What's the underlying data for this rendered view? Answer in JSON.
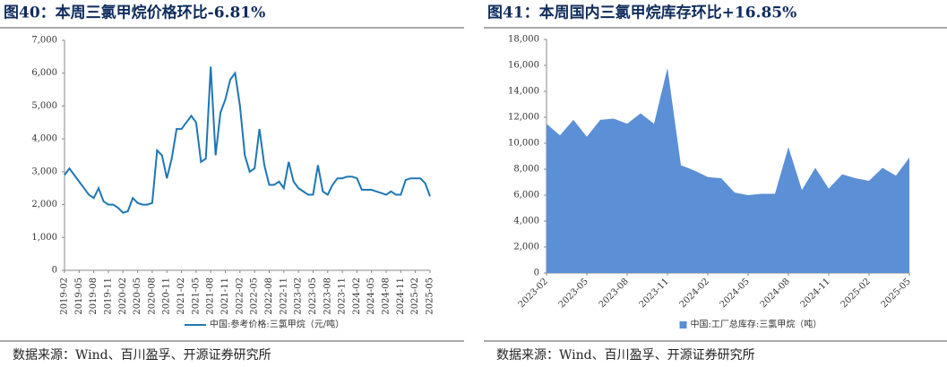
{
  "chart_data": [
    {
      "type": "line",
      "title": "图40：本周三氯甲烷价格环比-6.81%",
      "source": "数据来源：Wind、百川盈孚、开源证券研究所",
      "categories": [
        "2019-02",
        null,
        null,
        "2019-05",
        null,
        null,
        "2019-08",
        null,
        null,
        "2019-11",
        null,
        null,
        "2020-02",
        null,
        null,
        "2020-05",
        null,
        null,
        "2020-08",
        null,
        null,
        "2020-11",
        null,
        null,
        "2021-02",
        null,
        null,
        "2021-05",
        null,
        null,
        "2021-08",
        null,
        null,
        "2021-11",
        null,
        null,
        "2022-02",
        null,
        null,
        "2022-05",
        null,
        null,
        "2022-08",
        null,
        null,
        "2022-11",
        null,
        null,
        "2023-02",
        null,
        null,
        "2023-05",
        null,
        null,
        "2023-08",
        null,
        null,
        "2023-11",
        null,
        null,
        "2024-02",
        null,
        null,
        "2024-05",
        null,
        null,
        "2024-08",
        null,
        null,
        "2024-11",
        null,
        null,
        "2025-02",
        null,
        null,
        "2025-05"
      ],
      "series": [
        {
          "name": "中国:参考价格:三氯甲烷（元/吨）",
          "color": "#1f77b4",
          "values": [
            2900,
            3100,
            2900,
            2700,
            2500,
            2300,
            2200,
            2500,
            2100,
            2000,
            2000,
            1900,
            1750,
            1800,
            2200,
            2050,
            2000,
            2000,
            2050,
            3650,
            3500,
            2800,
            3400,
            4300,
            4300,
            4500,
            4700,
            4500,
            3300,
            3400,
            6200,
            3500,
            4800,
            5200,
            5800,
            6000,
            5000,
            3500,
            3000,
            3100,
            4300,
            3200,
            2600,
            2600,
            2700,
            2500,
            3300,
            2700,
            2500,
            2400,
            2300,
            2300,
            3200,
            2400,
            2300,
            2600,
            2800,
            2800,
            2850,
            2850,
            2800,
            2450,
            2450,
            2450,
            2400,
            2350,
            2300,
            2400,
            2300,
            2300,
            2750,
            2800,
            2800,
            2800,
            2650,
            2250
          ]
        }
      ],
      "ylim": [
        0,
        7000
      ],
      "yticks": [
        0,
        {
          "value": 1000,
          "label": "1,000"
        },
        {
          "value": 2000,
          "label": "2,000"
        },
        {
          "value": 3000,
          "label": "3,000"
        },
        {
          "value": 4000,
          "label": "4,000"
        },
        {
          "value": 5000,
          "label": "5,000"
        },
        {
          "value": 6000,
          "label": "6,000"
        },
        {
          "value": 7000,
          "label": "7,000"
        }
      ]
    },
    {
      "type": "area",
      "title": "图41：本周国内三氯甲烷库存环比+16.85%",
      "source": "数据来源：Wind、百川盈孚、开源证券研究所",
      "categories": [
        "2023-02",
        null,
        null,
        "2023-05",
        null,
        null,
        "2023-08",
        null,
        null,
        "2023-11",
        null,
        null,
        "2024-02",
        null,
        null,
        "2024-05",
        null,
        null,
        "2024-08",
        null,
        null,
        "2024-11",
        null,
        null,
        "2025-02",
        null,
        null,
        "2025-05"
      ],
      "series": [
        {
          "name": "中国:工厂总库存:三氯甲烷（吨）",
          "color": "#5b8fd6",
          "values": [
            11500,
            10600,
            11800,
            10500,
            11800,
            11900,
            11500,
            12300,
            11500,
            15800,
            8300,
            7900,
            7400,
            7300,
            6200,
            6000,
            6100,
            6100,
            9700,
            6400,
            8100,
            6500,
            7600,
            7300,
            7100,
            8100,
            7500,
            8900
          ]
        }
      ],
      "ylim": [
        0,
        18000
      ],
      "yticks": [
        0,
        {
          "value": 2000,
          "label": "2,000"
        },
        {
          "value": 4000,
          "label": "4,000"
        },
        {
          "value": 6000,
          "label": "6,000"
        },
        {
          "value": 8000,
          "label": "8,000"
        },
        {
          "value": 10000,
          "label": "10,000"
        },
        {
          "value": 12000,
          "label": "12,000"
        },
        {
          "value": 14000,
          "label": "14,000"
        },
        {
          "value": 16000,
          "label": "16,000"
        },
        {
          "value": 18000,
          "label": "18,000"
        }
      ]
    }
  ]
}
